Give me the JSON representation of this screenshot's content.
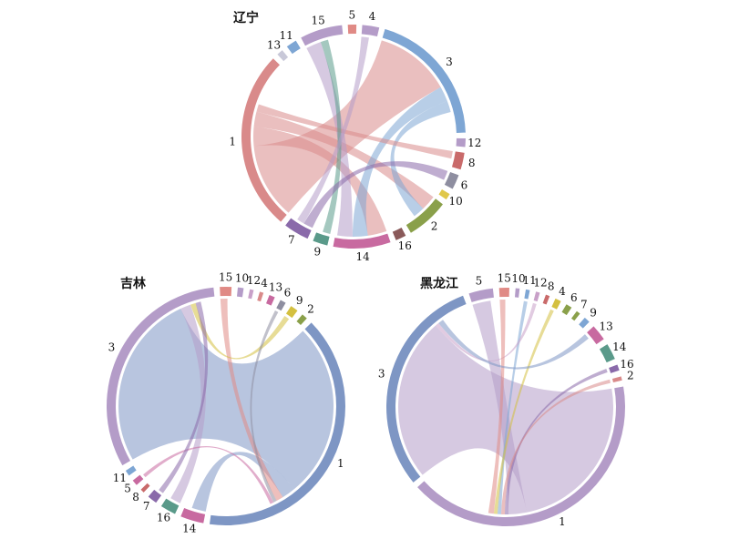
{
  "chart_data": [
    {
      "type": "chord",
      "title": "辽宁",
      "groups": [
        "15",
        "5",
        "4",
        "3",
        "12",
        "8",
        "6",
        "10",
        "2",
        "16",
        "14",
        "9",
        "7",
        "1",
        "13",
        "11"
      ],
      "values": [
        20,
        4,
        8,
        65,
        4,
        8,
        7,
        3,
        20,
        5,
        27,
        7,
        12,
        85,
        3,
        5
      ],
      "colors": [
        "#b49cc8",
        "#e08a85",
        "#b49cc8",
        "#7ea6d4",
        "#b49cc8",
        "#c96a6a",
        "#8e8ea0",
        "#e0c84a",
        "#8aa04a",
        "#8a5a5a",
        "#c86aa0",
        "#5a9a8a",
        "#8a6aaa",
        "#d98a8a",
        "#c8c8d8",
        "#7ea6d4"
      ],
      "links": [
        {
          "source": 13,
          "target": 3,
          "value": 40
        },
        {
          "source": 13,
          "target": 10,
          "value": 10
        },
        {
          "source": 13,
          "target": 8,
          "value": 8
        },
        {
          "source": 3,
          "target": 10,
          "value": 8
        },
        {
          "source": 0,
          "target": 10,
          "value": 8
        },
        {
          "source": 3,
          "target": 8,
          "value": 6
        },
        {
          "source": 13,
          "target": 5,
          "value": 4
        },
        {
          "source": 11,
          "target": 0,
          "value": 4
        },
        {
          "source": 12,
          "target": 6,
          "value": 5
        },
        {
          "source": 2,
          "target": 12,
          "value": 4
        }
      ]
    },
    {
      "type": "chord",
      "title": "吉林",
      "groups": [
        "15",
        "10",
        "12",
        "4",
        "13",
        "6",
        "9",
        "2",
        "1",
        "14",
        "16",
        "7",
        "8",
        "5",
        "11",
        "3"
      ],
      "values": [
        6,
        3,
        2,
        2,
        3,
        3,
        4,
        3,
        150,
        12,
        8,
        5,
        2,
        3,
        3,
        120
      ],
      "colors": [
        "#e08a85",
        "#b49cc8",
        "#c8a0c8",
        "#d98a8a",
        "#c86aa0",
        "#8e8ea0",
        "#d4c040",
        "#8aa04a",
        "#7e96c4",
        "#c86aa0",
        "#5a9a8a",
        "#8a6aaa",
        "#c96a6a",
        "#c86aa0",
        "#7ea6d4",
        "#b49cc8"
      ],
      "links": [
        {
          "source": 8,
          "target": 15,
          "value": 100
        },
        {
          "source": 8,
          "target": 9,
          "value": 8
        },
        {
          "source": 15,
          "target": 10,
          "value": 6
        },
        {
          "source": 0,
          "target": 8,
          "value": 4
        },
        {
          "source": 6,
          "target": 15,
          "value": 3
        },
        {
          "source": 5,
          "target": 8,
          "value": 2
        },
        {
          "source": 13,
          "target": 8,
          "value": 2
        },
        {
          "source": 11,
          "target": 15,
          "value": 3
        }
      ]
    },
    {
      "type": "chord",
      "title": "黑龙江",
      "groups": [
        "5",
        "15",
        "10",
        "11",
        "12",
        "8",
        "4",
        "6",
        "7",
        "9",
        "13",
        "14",
        "16",
        "2",
        "1",
        "3"
      ],
      "values": [
        12,
        5,
        2,
        2,
        2,
        2,
        3,
        3,
        2,
        3,
        8,
        8,
        3,
        2,
        150,
        110
      ],
      "colors": [
        "#b49cc8",
        "#e08a85",
        "#b49cc8",
        "#7ea6d4",
        "#c8a0c8",
        "#c96a6a",
        "#d4c040",
        "#8aa04a",
        "#8aa04a",
        "#7ea6d4",
        "#c86aa0",
        "#5a9a8a",
        "#8a6aaa",
        "#d98a8a",
        "#b49cc8",
        "#7e96c4"
      ],
      "links": [
        {
          "source": 14,
          "target": 15,
          "value": 90
        },
        {
          "source": 14,
          "target": 0,
          "value": 10
        },
        {
          "source": 12,
          "target": 14,
          "value": 2
        },
        {
          "source": 13,
          "target": 14,
          "value": 2
        },
        {
          "source": 3,
          "target": 14,
          "value": 2
        },
        {
          "source": 6,
          "target": 14,
          "value": 2
        },
        {
          "source": 4,
          "target": 15,
          "value": 2
        },
        {
          "source": 1,
          "target": 14,
          "value": 3
        },
        {
          "source": 15,
          "target": 10,
          "value": 3
        }
      ]
    }
  ]
}
